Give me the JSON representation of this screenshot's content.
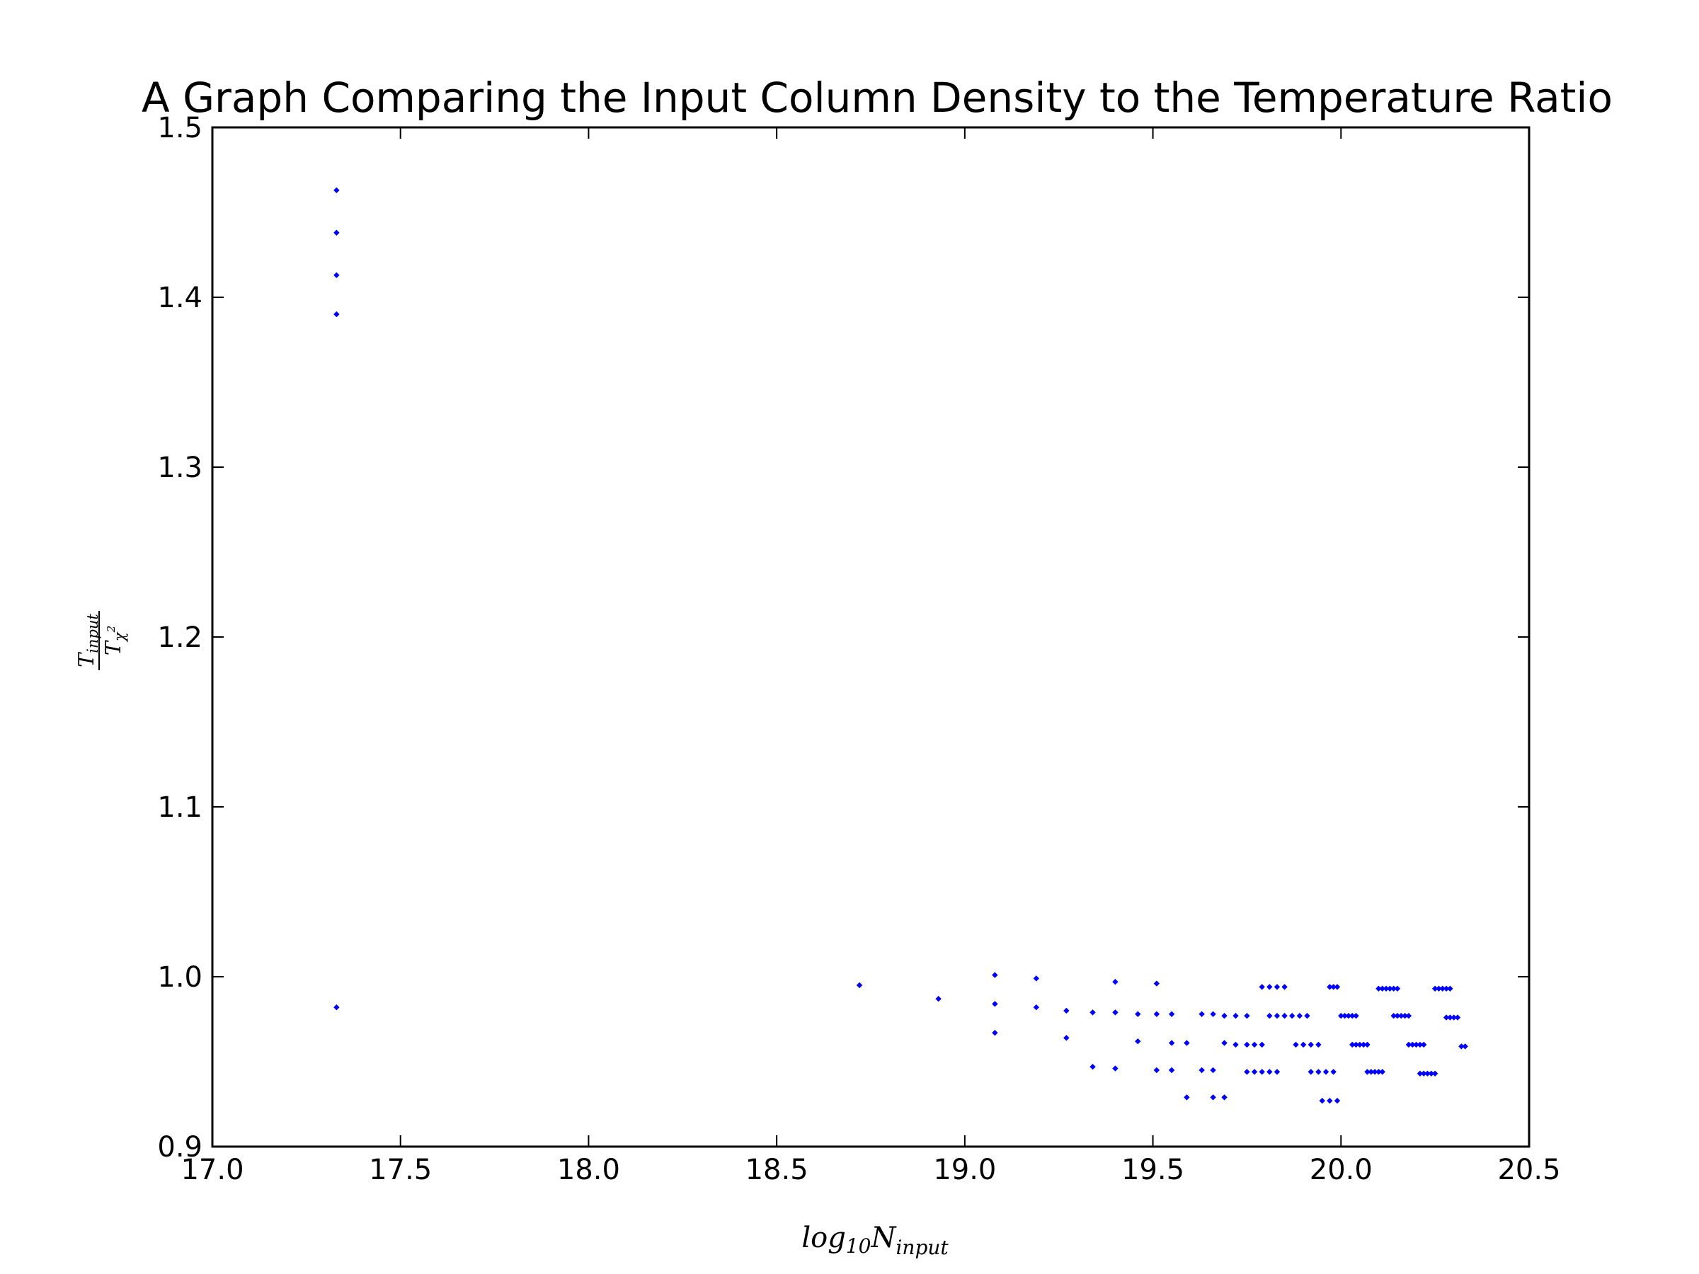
{
  "chart_data": {
    "type": "scatter",
    "title": "A Graph Comparing the Input Column Density to the Temperature Ratio",
    "xlabel": {
      "base": "log",
      "sub1": "10",
      "main": "N",
      "sub2": "input"
    },
    "ylabel": {
      "num": "T",
      "num_sub": "input",
      "den": "T",
      "den_sub": "χ",
      "den_sup": "2"
    },
    "xlim": [
      17.0,
      20.5
    ],
    "ylim": [
      0.9,
      1.5
    ],
    "xticks": [
      17.0,
      17.5,
      18.0,
      18.5,
      19.0,
      19.5,
      20.0,
      20.5
    ],
    "yticks": [
      0.9,
      1.0,
      1.1,
      1.2,
      1.3,
      1.4,
      1.5
    ],
    "xtick_labels": [
      "17.0",
      "17.5",
      "18.0",
      "18.5",
      "19.0",
      "19.5",
      "20.0",
      "20.5"
    ],
    "ytick_labels": [
      "0.9",
      "1.0",
      "1.1",
      "1.2",
      "1.3",
      "1.4",
      "1.5"
    ],
    "marker_color": "#0000ff",
    "grid": false,
    "points": [
      [
        17.33,
        1.463
      ],
      [
        17.33,
        1.438
      ],
      [
        17.33,
        1.413
      ],
      [
        17.33,
        1.39
      ],
      [
        17.33,
        0.982
      ],
      [
        18.72,
        0.995
      ],
      [
        18.93,
        0.987
      ],
      [
        19.08,
        1.001
      ],
      [
        19.08,
        0.984
      ],
      [
        19.08,
        0.967
      ],
      [
        19.19,
        0.999
      ],
      [
        19.19,
        0.982
      ],
      [
        19.27,
        0.98
      ],
      [
        19.27,
        0.964
      ],
      [
        19.34,
        0.979
      ],
      [
        19.34,
        0.947
      ],
      [
        19.4,
        0.997
      ],
      [
        19.4,
        0.979
      ],
      [
        19.4,
        0.946
      ],
      [
        19.46,
        0.978
      ],
      [
        19.46,
        0.962
      ],
      [
        19.51,
        0.996
      ],
      [
        19.51,
        0.978
      ],
      [
        19.51,
        0.945
      ],
      [
        19.55,
        0.978
      ],
      [
        19.55,
        0.961
      ],
      [
        19.55,
        0.945
      ],
      [
        19.59,
        0.961
      ],
      [
        19.59,
        0.929
      ],
      [
        19.63,
        0.978
      ],
      [
        19.63,
        0.945
      ],
      [
        19.66,
        0.978
      ],
      [
        19.66,
        0.945
      ],
      [
        19.66,
        0.929
      ],
      [
        19.69,
        0.977
      ],
      [
        19.69,
        0.961
      ],
      [
        19.69,
        0.929
      ],
      [
        19.72,
        0.977
      ],
      [
        19.72,
        0.96
      ],
      [
        19.75,
        0.977
      ],
      [
        19.75,
        0.96
      ],
      [
        19.75,
        0.944
      ],
      [
        19.77,
        0.96
      ],
      [
        19.77,
        0.944
      ],
      [
        19.79,
        0.994
      ],
      [
        19.79,
        0.96
      ],
      [
        19.79,
        0.944
      ],
      [
        19.81,
        0.994
      ],
      [
        19.81,
        0.977
      ],
      [
        19.81,
        0.944
      ],
      [
        19.83,
        0.994
      ],
      [
        19.83,
        0.977
      ],
      [
        19.83,
        0.944
      ],
      [
        19.85,
        0.994
      ],
      [
        19.85,
        0.977
      ],
      [
        19.87,
        0.977
      ],
      [
        19.88,
        0.96
      ],
      [
        19.89,
        0.977
      ],
      [
        19.9,
        0.96
      ],
      [
        19.91,
        0.977
      ],
      [
        19.92,
        0.96
      ],
      [
        19.92,
        0.944
      ],
      [
        19.94,
        0.96
      ],
      [
        19.94,
        0.944
      ],
      [
        19.95,
        0.927
      ],
      [
        19.96,
        0.944
      ],
      [
        19.97,
        0.927
      ],
      [
        19.97,
        0.994
      ],
      [
        19.98,
        0.944
      ],
      [
        19.98,
        0.994
      ],
      [
        19.99,
        0.927
      ],
      [
        19.99,
        0.994
      ],
      [
        20.0,
        0.977
      ],
      [
        20.01,
        0.977
      ],
      [
        20.02,
        0.977
      ],
      [
        20.03,
        0.977
      ],
      [
        20.03,
        0.96
      ],
      [
        20.04,
        0.977
      ],
      [
        20.04,
        0.96
      ],
      [
        20.05,
        0.96
      ],
      [
        20.06,
        0.96
      ],
      [
        20.07,
        0.96
      ],
      [
        20.07,
        0.944
      ],
      [
        20.08,
        0.944
      ],
      [
        20.09,
        0.944
      ],
      [
        20.1,
        0.944
      ],
      [
        20.11,
        0.944
      ],
      [
        20.1,
        0.993
      ],
      [
        20.11,
        0.993
      ],
      [
        20.12,
        0.993
      ],
      [
        20.13,
        0.993
      ],
      [
        20.14,
        0.993
      ],
      [
        20.15,
        0.993
      ],
      [
        20.14,
        0.977
      ],
      [
        20.15,
        0.977
      ],
      [
        20.16,
        0.977
      ],
      [
        20.17,
        0.977
      ],
      [
        20.18,
        0.977
      ],
      [
        20.18,
        0.96
      ],
      [
        20.19,
        0.96
      ],
      [
        20.2,
        0.96
      ],
      [
        20.21,
        0.96
      ],
      [
        20.22,
        0.96
      ],
      [
        20.21,
        0.943
      ],
      [
        20.22,
        0.943
      ],
      [
        20.23,
        0.943
      ],
      [
        20.24,
        0.943
      ],
      [
        20.25,
        0.943
      ],
      [
        20.25,
        0.993
      ],
      [
        20.26,
        0.993
      ],
      [
        20.27,
        0.993
      ],
      [
        20.28,
        0.993
      ],
      [
        20.29,
        0.993
      ],
      [
        20.28,
        0.976
      ],
      [
        20.29,
        0.976
      ],
      [
        20.3,
        0.976
      ],
      [
        20.31,
        0.976
      ],
      [
        20.32,
        0.959
      ],
      [
        20.33,
        0.959
      ]
    ]
  }
}
